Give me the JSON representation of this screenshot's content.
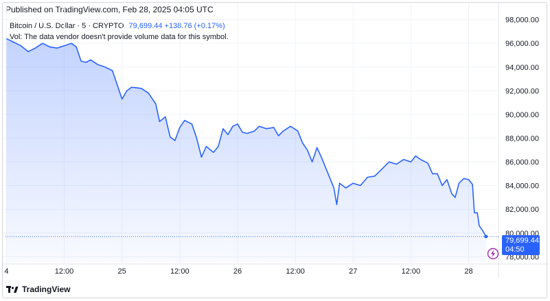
{
  "header": {
    "published": "Published on TradingView.com, Feb 28, 2025 04:05 UTC"
  },
  "legend": {
    "symbol": "Bitcoin / U.S. Dollar · 5 · CRYPTO",
    "values": "79,699.44 +138.76 (+0.17%)",
    "volume_note": "Vol: The data vendor doesn't provide volume data for this symbol."
  },
  "price_badge": {
    "price": "79,699.44",
    "countdown": "04:50"
  },
  "footer": {
    "brand": "TradingView"
  },
  "colors": {
    "line": "#2962ff",
    "badge": "#2962ff",
    "grid": "#f0f3fa",
    "axis_text": "#131722"
  },
  "chart_data": {
    "type": "area",
    "title": "Bitcoin / U.S. Dollar · 5 · CRYPTO",
    "ylim": [
      77500,
      98500
    ],
    "y_ticks": [
      78000,
      80000,
      82000,
      84000,
      86000,
      88000,
      90000,
      92000,
      94000,
      96000,
      98000
    ],
    "y_tick_labels": [
      "78,000.00",
      "80,000.00",
      "82,000.00",
      "84,000.00",
      "86,000.00",
      "88,000.00",
      "90,000.00",
      "92,000.00",
      "94,000.00",
      "96,000.00",
      "98,000.00"
    ],
    "x_ticks": [
      {
        "t": 0,
        "label": "4"
      },
      {
        "t": 12,
        "label": "12:00"
      },
      {
        "t": 24,
        "label": "25"
      },
      {
        "t": 36,
        "label": "12:00"
      },
      {
        "t": 48,
        "label": "26"
      },
      {
        "t": 60,
        "label": "12:00"
      },
      {
        "t": 72,
        "label": "27"
      },
      {
        "t": 84,
        "label": "12:00"
      },
      {
        "t": 96,
        "label": "28"
      }
    ],
    "x_range": [
      -0.2,
      102.2
    ],
    "grid": true,
    "last_price": 79699.44,
    "series": [
      {
        "points": [
          [
            0.0,
            96400
          ],
          [
            1.5,
            96100
          ],
          [
            3.0,
            95800
          ],
          [
            4.5,
            95300
          ],
          [
            6.0,
            95600
          ],
          [
            7.5,
            96000
          ],
          [
            9.0,
            95700
          ],
          [
            10.5,
            95600
          ],
          [
            12.0,
            95800
          ],
          [
            13.5,
            96000
          ],
          [
            14.5,
            95700
          ],
          [
            15.5,
            94500
          ],
          [
            16.5,
            94400
          ],
          [
            17.5,
            94600
          ],
          [
            19.0,
            94200
          ],
          [
            20.5,
            94000
          ],
          [
            22.0,
            93700
          ],
          [
            23.0,
            92500
          ],
          [
            24.0,
            91300
          ],
          [
            25.0,
            92000
          ],
          [
            26.0,
            92300
          ],
          [
            28.0,
            92200
          ],
          [
            29.5,
            91800
          ],
          [
            31.0,
            90900
          ],
          [
            31.8,
            89400
          ],
          [
            33.0,
            89800
          ],
          [
            34.0,
            88100
          ],
          [
            35.0,
            87800
          ],
          [
            36.0,
            88900
          ],
          [
            37.0,
            89500
          ],
          [
            38.5,
            89200
          ],
          [
            39.5,
            88000
          ],
          [
            40.5,
            86400
          ],
          [
            41.5,
            87300
          ],
          [
            43.0,
            86800
          ],
          [
            44.0,
            87300
          ],
          [
            45.0,
            88800
          ],
          [
            46.0,
            88300
          ],
          [
            47.0,
            89000
          ],
          [
            48.0,
            89200
          ],
          [
            49.0,
            88500
          ],
          [
            50.0,
            88400
          ],
          [
            51.5,
            88600
          ],
          [
            52.5,
            89000
          ],
          [
            54.0,
            88800
          ],
          [
            55.5,
            88900
          ],
          [
            56.5,
            88200
          ],
          [
            57.5,
            88600
          ],
          [
            59.0,
            89000
          ],
          [
            60.5,
            88600
          ],
          [
            61.5,
            87600
          ],
          [
            62.5,
            87000
          ],
          [
            63.5,
            86000
          ],
          [
            64.5,
            87200
          ],
          [
            65.5,
            86300
          ],
          [
            67.0,
            84800
          ],
          [
            68.0,
            83800
          ],
          [
            68.6,
            82400
          ],
          [
            69.2,
            84200
          ],
          [
            70.5,
            83800
          ],
          [
            72.0,
            84200
          ],
          [
            73.5,
            84000
          ],
          [
            75.0,
            84700
          ],
          [
            76.5,
            84800
          ],
          [
            78.0,
            85400
          ],
          [
            79.5,
            86000
          ],
          [
            81.0,
            85800
          ],
          [
            82.5,
            86200
          ],
          [
            84.0,
            86000
          ],
          [
            85.0,
            86500
          ],
          [
            86.0,
            86200
          ],
          [
            87.5,
            85900
          ],
          [
            88.5,
            85000
          ],
          [
            89.5,
            85000
          ],
          [
            90.5,
            84000
          ],
          [
            91.5,
            84500
          ],
          [
            92.5,
            83300
          ],
          [
            93.2,
            83000
          ],
          [
            94.0,
            84200
          ],
          [
            95.0,
            84600
          ],
          [
            96.0,
            84500
          ],
          [
            96.8,
            84100
          ],
          [
            97.2,
            81700
          ],
          [
            97.8,
            81700
          ],
          [
            98.2,
            80600
          ],
          [
            98.9,
            80200
          ],
          [
            99.6,
            79699.44
          ]
        ]
      }
    ]
  }
}
